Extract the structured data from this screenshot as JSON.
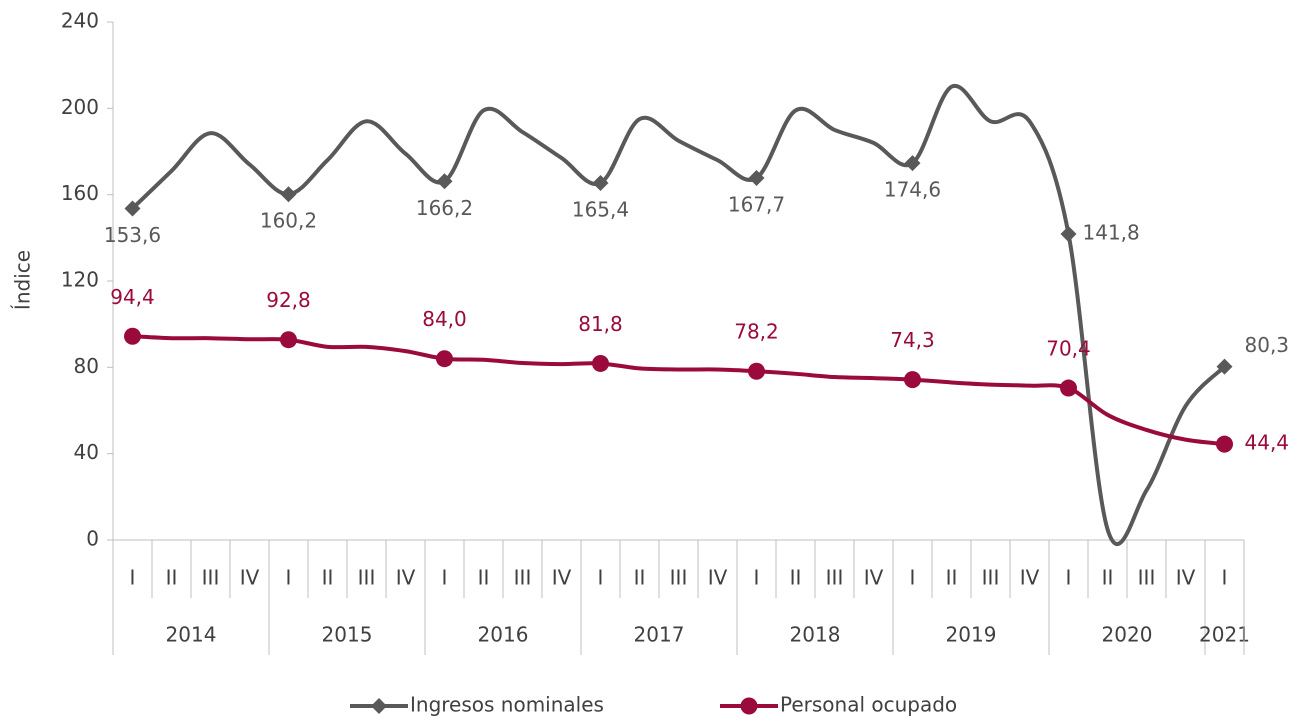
{
  "chart_data": {
    "type": "line",
    "y_label": "Índice",
    "categories_grouped": [
      {
        "year": "2014",
        "quarters": [
          "I",
          "II",
          "III",
          "IV"
        ]
      },
      {
        "year": "2015",
        "quarters": [
          "I",
          "II",
          "III",
          "IV"
        ]
      },
      {
        "year": "2016",
        "quarters": [
          "I",
          "II",
          "III",
          "IV"
        ]
      },
      {
        "year": "2017",
        "quarters": [
          "I",
          "II",
          "III",
          "IV"
        ]
      },
      {
        "year": "2018",
        "quarters": [
          "I",
          "II",
          "III",
          "IV"
        ]
      },
      {
        "year": "2019",
        "quarters": [
          "I",
          "II",
          "III",
          "IV"
        ]
      },
      {
        "year": "2020",
        "quarters": [
          "I",
          "II",
          "III",
          "IV"
        ]
      },
      {
        "year": "2021",
        "quarters": [
          "I"
        ]
      }
    ],
    "series": [
      {
        "name": "Ingresos nominales",
        "color": "#595959",
        "marker": "diamond",
        "values": [
          153.6,
          171,
          188.5,
          174,
          160.2,
          176,
          194,
          179,
          166.2,
          199,
          189,
          177,
          165.4,
          195,
          185,
          176,
          167.7,
          199,
          190,
          184,
          174.6,
          210,
          194,
          194,
          141.8,
          5,
          23,
          62,
          80.3
        ],
        "value_labels": [
          "153,6",
          null,
          null,
          null,
          "160,2",
          null,
          null,
          null,
          "166,2",
          null,
          null,
          null,
          "165,4",
          null,
          null,
          null,
          "167,7",
          null,
          null,
          null,
          "174,6",
          null,
          null,
          null,
          "141,8",
          null,
          null,
          null,
          "80,3"
        ]
      },
      {
        "name": "Personal ocupado",
        "color": "#9b0a3c",
        "marker": "circle",
        "values": [
          94.4,
          93.5,
          93.5,
          93,
          92.8,
          89.5,
          89.5,
          87.5,
          84.0,
          83.5,
          82,
          81.5,
          81.8,
          79.5,
          79,
          79,
          78.2,
          77,
          75.5,
          75,
          74.3,
          73,
          72,
          71.5,
          70.4,
          58,
          51,
          46.5,
          44.4
        ],
        "value_labels": [
          "94,4",
          null,
          null,
          null,
          "92,8",
          null,
          null,
          null,
          "84,0",
          null,
          null,
          null,
          "81,8",
          null,
          null,
          null,
          "78,2",
          null,
          null,
          null,
          "74,3",
          null,
          null,
          null,
          "70,4",
          null,
          null,
          null,
          "44,4"
        ]
      }
    ],
    "ylim": [
      0,
      240
    ],
    "yticks": [
      0,
      40,
      80,
      120,
      160,
      200,
      240
    ],
    "grid": false,
    "legend": "bottom"
  }
}
